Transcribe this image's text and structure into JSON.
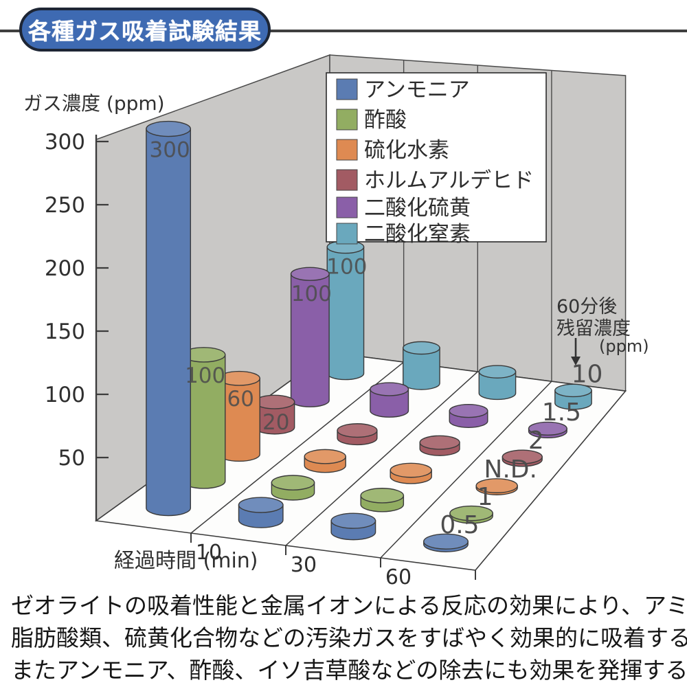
{
  "page": {
    "title_badge": "各種ガス吸着試験結果",
    "footer_lines": [
      "ゼオライトの吸着性能と金属イオンによる反応の効果により、アミン類、",
      "脂肪酸類、硫黄化合物などの汚染ガスをすばやく効果的に吸着する。",
      "またアンモニア、酢酸、イソ吉草酸などの除去にも効果を発揮する。"
    ]
  },
  "chart_data": {
    "type": "bar",
    "style": "3d-cylinder-bar-chart",
    "title": "各種ガス吸着試験結果",
    "ylabel": "ガス濃度 (ppm)",
    "xlabel": "経過時間 (min)",
    "ylim": [
      0,
      300
    ],
    "yticks": [
      50,
      100,
      150,
      200,
      250,
      300
    ],
    "x_axis_ticks": [
      "10",
      "30",
      "60"
    ],
    "categories": [
      "0",
      "10",
      "30",
      "60"
    ],
    "grid": false,
    "legend_position": "top-center-on-back-wall",
    "annotation": {
      "lines": [
        "60分後",
        "残留濃度",
        "(ppm)"
      ],
      "arrow_icon": "down-arrow"
    },
    "series": [
      {
        "name": "アンモニア",
        "color": "#5b7cb2",
        "values": [
          300,
          12,
          9,
          0.5
        ],
        "labels": [
          "300",
          null,
          null,
          "0.5"
        ]
      },
      {
        "name": "酢酸",
        "color": "#92ad62",
        "values": [
          100,
          8,
          7,
          1
        ],
        "labels": [
          "100",
          null,
          null,
          "1"
        ]
      },
      {
        "name": "硫化水素",
        "color": "#de8a52",
        "values": [
          60,
          7,
          5,
          0
        ],
        "labels": [
          "60",
          null,
          null,
          "N.D."
        ]
      },
      {
        "name": "ホルムアルデヒド",
        "color": "#a25b63",
        "values": [
          20,
          6,
          5,
          2
        ],
        "labels": [
          "20",
          null,
          null,
          "2"
        ]
      },
      {
        "name": "二酸化硫黄",
        "color": "#8a5fa8",
        "values": [
          100,
          17,
          8,
          1.5
        ],
        "labels": [
          "100",
          null,
          null,
          "1.5"
        ]
      },
      {
        "name": "二酸化窒素",
        "color": "#6aa8bd",
        "values": [
          100,
          28,
          17,
          10
        ],
        "labels": [
          "100",
          null,
          null,
          "10"
        ]
      }
    ],
    "colors": {
      "wall": "#c9c8c6",
      "wall_line": "#4a4a4a",
      "floor": "#fdfdfc",
      "axis": "#3c3c3c",
      "bar_label": "#4d4d4d",
      "legend_border": "#2b2b2b"
    }
  }
}
